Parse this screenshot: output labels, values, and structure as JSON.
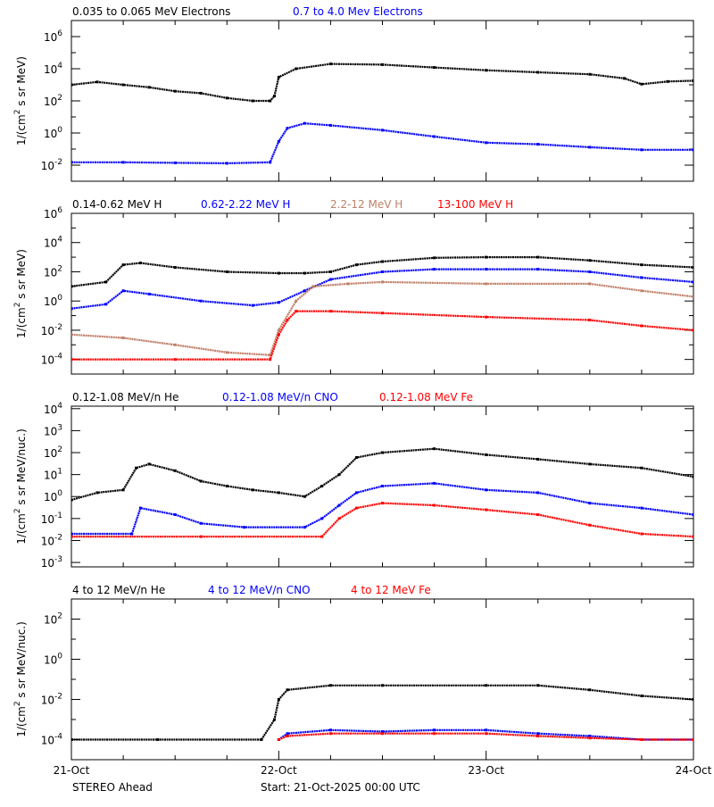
{
  "chart_data": [
    {
      "type": "scatter",
      "ylabel": "1/(cm² s sr MeV)",
      "ylabel_parts": [
        "1/(cm",
        "2",
        " s sr MeV)"
      ],
      "y_scale": "log",
      "ylim": [
        0.001,
        10000000
      ],
      "y_ticks": [
        {
          "exp": "6"
        },
        {
          "exp": "4"
        },
        {
          "exp": "2"
        },
        {
          "exp": "0"
        },
        {
          "exp": "-2"
        }
      ],
      "y_tick_values": [
        1000000,
        10000,
        100,
        1,
        0.01
      ],
      "xlim_hours": [
        0,
        72
      ],
      "series": [
        {
          "name": "0.035 to 0.065 MeV Electrons",
          "color": "#000000",
          "points": [
            [
              0,
              1000
            ],
            [
              3,
              1500
            ],
            [
              6,
              1000
            ],
            [
              9,
              700
            ],
            [
              12,
              400
            ],
            [
              15,
              300
            ],
            [
              18,
              150
            ],
            [
              21,
              100
            ],
            [
              23,
              100
            ],
            [
              23.5,
              200
            ],
            [
              24,
              3000
            ],
            [
              26,
              10000
            ],
            [
              30,
              20000
            ],
            [
              36,
              18000
            ],
            [
              42,
              12000
            ],
            [
              48,
              8000
            ],
            [
              54,
              6000
            ],
            [
              60,
              4500
            ],
            [
              64,
              2500
            ],
            [
              66,
              1100
            ],
            [
              69,
              1600
            ],
            [
              72,
              1800
            ]
          ]
        },
        {
          "name": "0.7 to 4.0 Mev Electrons",
          "color": "#0000ff",
          "points": [
            [
              0,
              0.015
            ],
            [
              6,
              0.015
            ],
            [
              12,
              0.014
            ],
            [
              18,
              0.013
            ],
            [
              23,
              0.015
            ],
            [
              24,
              0.3
            ],
            [
              25,
              2
            ],
            [
              27,
              4
            ],
            [
              30,
              3
            ],
            [
              36,
              1.5
            ],
            [
              42,
              0.6
            ],
            [
              48,
              0.25
            ],
            [
              54,
              0.2
            ],
            [
              60,
              0.13
            ],
            [
              66,
              0.09
            ],
            [
              72,
              0.09
            ]
          ]
        }
      ]
    },
    {
      "type": "scatter",
      "ylabel": "1/(cm² s sr MeV)",
      "ylabel_parts": [
        "1/(cm",
        "2",
        " s sr MeV)"
      ],
      "y_scale": "log",
      "ylim": [
        1e-05,
        1000000
      ],
      "y_ticks": [
        {
          "exp": "6"
        },
        {
          "exp": "4"
        },
        {
          "exp": "2"
        },
        {
          "exp": "0"
        },
        {
          "exp": "-2"
        },
        {
          "exp": "-4"
        }
      ],
      "y_tick_values": [
        1000000,
        10000,
        100,
        1,
        0.01,
        0.0001
      ],
      "xlim_hours": [
        0,
        72
      ],
      "series": [
        {
          "name": "0.14-0.62 MeV H",
          "color": "#000000",
          "points": [
            [
              0,
              10
            ],
            [
              4,
              20
            ],
            [
              6,
              300
            ],
            [
              8,
              400
            ],
            [
              12,
              200
            ],
            [
              18,
              100
            ],
            [
              24,
              80
            ],
            [
              27,
              80
            ],
            [
              30,
              100
            ],
            [
              33,
              300
            ],
            [
              36,
              500
            ],
            [
              42,
              900
            ],
            [
              48,
              1000
            ],
            [
              54,
              1000
            ],
            [
              60,
              600
            ],
            [
              66,
              300
            ],
            [
              72,
              200
            ]
          ]
        },
        {
          "name": "0.62-2.22 MeV H",
          "color": "#0000ff",
          "points": [
            [
              0,
              0.3
            ],
            [
              4,
              0.6
            ],
            [
              6,
              5
            ],
            [
              9,
              3
            ],
            [
              15,
              1
            ],
            [
              21,
              0.5
            ],
            [
              24,
              0.8
            ],
            [
              27,
              5
            ],
            [
              30,
              30
            ],
            [
              36,
              100
            ],
            [
              42,
              150
            ],
            [
              48,
              150
            ],
            [
              54,
              150
            ],
            [
              60,
              100
            ],
            [
              66,
              40
            ],
            [
              72,
              20
            ]
          ]
        },
        {
          "name": "2.2-12 MeV H",
          "color": "#c0806a",
          "points": [
            [
              0,
              0.005
            ],
            [
              6,
              0.003
            ],
            [
              12,
              0.001
            ],
            [
              18,
              0.0003
            ],
            [
              23,
              0.0002
            ],
            [
              24,
              0.01
            ],
            [
              26,
              1
            ],
            [
              28,
              10
            ],
            [
              32,
              15
            ],
            [
              36,
              20
            ],
            [
              48,
              15
            ],
            [
              60,
              15
            ],
            [
              66,
              5
            ],
            [
              72,
              2
            ]
          ]
        },
        {
          "name": "13-100 MeV H",
          "color": "#ff0000",
          "points": [
            [
              0,
              0.0001
            ],
            [
              12,
              0.0001
            ],
            [
              23,
              0.0001
            ],
            [
              24,
              0.005
            ],
            [
              25,
              0.05
            ],
            [
              26,
              0.2
            ],
            [
              30,
              0.2
            ],
            [
              36,
              0.15
            ],
            [
              48,
              0.08
            ],
            [
              60,
              0.05
            ],
            [
              66,
              0.02
            ],
            [
              72,
              0.01
            ]
          ]
        }
      ]
    },
    {
      "type": "scatter",
      "ylabel": "1/(cm² s sr MeV/nuc.)",
      "ylabel_parts": [
        "1/(cm",
        "2",
        " s sr MeV/nuc.)"
      ],
      "y_scale": "log",
      "ylim": [
        0.00063,
        13000
      ],
      "y_ticks": [
        {
          "exp": "4"
        },
        {
          "exp": "3"
        },
        {
          "exp": "2"
        },
        {
          "exp": "1"
        },
        {
          "exp": "0"
        },
        {
          "exp": "-1"
        },
        {
          "exp": "-2"
        },
        {
          "exp": "-3"
        }
      ],
      "y_tick_values": [
        10000,
        1000,
        100,
        10,
        1,
        0.1,
        0.01,
        0.001
      ],
      "xlim_hours": [
        0,
        72
      ],
      "series": [
        {
          "name": "0.12-1.08 MeV/n He",
          "color": "#000000",
          "points": [
            [
              0,
              0.7
            ],
            [
              3,
              1.5
            ],
            [
              6,
              2
            ],
            [
              7.5,
              20
            ],
            [
              9,
              30
            ],
            [
              12,
              15
            ],
            [
              15,
              5
            ],
            [
              18,
              3
            ],
            [
              21,
              2
            ],
            [
              24,
              1.5
            ],
            [
              27,
              1
            ],
            [
              29,
              3
            ],
            [
              31,
              10
            ],
            [
              33,
              60
            ],
            [
              36,
              100
            ],
            [
              42,
              150
            ],
            [
              48,
              80
            ],
            [
              54,
              50
            ],
            [
              60,
              30
            ],
            [
              66,
              20
            ],
            [
              72,
              8
            ]
          ]
        },
        {
          "name": "0.12-1.08 MeV/n CNO",
          "color": "#0000ff",
          "points": [
            [
              0,
              0.02
            ],
            [
              7,
              0.02
            ],
            [
              8,
              0.3
            ],
            [
              12,
              0.15
            ],
            [
              15,
              0.06
            ],
            [
              20,
              0.04
            ],
            [
              27,
              0.04
            ],
            [
              29,
              0.1
            ],
            [
              31,
              0.4
            ],
            [
              33,
              1.5
            ],
            [
              36,
              3
            ],
            [
              42,
              4
            ],
            [
              48,
              2
            ],
            [
              54,
              1.5
            ],
            [
              60,
              0.5
            ],
            [
              66,
              0.3
            ],
            [
              72,
              0.15
            ]
          ]
        },
        {
          "name": "0.12-1.08 MeV Fe",
          "color": "#ff0000",
          "points": [
            [
              0,
              0.015
            ],
            [
              15,
              0.015
            ],
            [
              29,
              0.015
            ],
            [
              31,
              0.1
            ],
            [
              33,
              0.3
            ],
            [
              36,
              0.5
            ],
            [
              42,
              0.4
            ],
            [
              48,
              0.25
            ],
            [
              54,
              0.15
            ],
            [
              60,
              0.05
            ],
            [
              66,
              0.02
            ],
            [
              72,
              0.015
            ]
          ]
        }
      ]
    },
    {
      "type": "scatter",
      "ylabel": "1/(cm² s sr MeV/nuc.)",
      "ylabel_parts": [
        "1/(cm",
        "2",
        " s sr MeV/nuc.)"
      ],
      "y_scale": "log",
      "ylim": [
        1e-05,
        1000
      ],
      "y_ticks": [
        {
          "exp": "2"
        },
        {
          "exp": "0"
        },
        {
          "exp": "-2"
        },
        {
          "exp": "-4"
        }
      ],
      "y_tick_values": [
        100,
        1,
        0.01,
        0.0001
      ],
      "xlim_hours": [
        0,
        72
      ],
      "x_ticks": [
        "21-Oct",
        "22-Oct",
        "23-Oct",
        "24-Oct"
      ],
      "series": [
        {
          "name": "4 to 12 MeV/n He",
          "color": "#000000",
          "points": [
            [
              0,
              0.0001
            ],
            [
              10,
              0.0001
            ],
            [
              22,
              0.0001
            ],
            [
              23.5,
              0.001
            ],
            [
              24,
              0.01
            ],
            [
              25,
              0.03
            ],
            [
              30,
              0.05
            ],
            [
              36,
              0.05
            ],
            [
              48,
              0.05
            ],
            [
              54,
              0.05
            ],
            [
              60,
              0.03
            ],
            [
              66,
              0.015
            ],
            [
              72,
              0.01
            ]
          ]
        },
        {
          "name": "4 to 12 MeV/n CNO",
          "color": "#0000ff",
          "points": [
            [
              24,
              0.0001
            ],
            [
              25,
              0.0002
            ],
            [
              30,
              0.0003
            ],
            [
              36,
              0.00025
            ],
            [
              42,
              0.0003
            ],
            [
              48,
              0.0003
            ],
            [
              54,
              0.0002
            ],
            [
              60,
              0.00015
            ],
            [
              66,
              0.0001
            ],
            [
              72,
              0.0001
            ]
          ]
        },
        {
          "name": "4 to 12 MeV Fe",
          "color": "#ff0000",
          "points": [
            [
              24,
              0.0001
            ],
            [
              25,
              0.00015
            ],
            [
              30,
              0.0002
            ],
            [
              36,
              0.0002
            ],
            [
              42,
              0.0002
            ],
            [
              48,
              0.0002
            ],
            [
              54,
              0.00015
            ],
            [
              60,
              0.00012
            ],
            [
              66,
              0.0001
            ],
            [
              72,
              0.0001
            ]
          ]
        }
      ]
    }
  ],
  "footer": {
    "spacecraft": "STEREO Ahead",
    "start": "Start: 21-Oct-2025 00:00 UTC"
  }
}
